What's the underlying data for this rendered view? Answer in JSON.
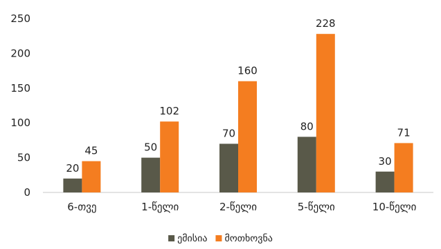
{
  "chart_data": {
    "type": "bar",
    "title": "",
    "xlabel": "",
    "ylabel": "",
    "categories": [
      "6-თვე",
      "1-წელი",
      "2-წელი",
      "5-წელი",
      "10-წელი"
    ],
    "series": [
      {
        "name": "ემისია",
        "values": [
          20,
          50,
          70,
          80,
          30
        ],
        "color": "#595949"
      },
      {
        "name": "მოთხოვნა",
        "values": [
          45,
          102,
          160,
          228,
          71
        ],
        "color": "#F47D20"
      }
    ],
    "ylim": [
      0,
      250
    ],
    "yticks": [
      0,
      50,
      100,
      150,
      200,
      250
    ],
    "grid": false,
    "legend": "bottom-center",
    "data_labels": true
  }
}
